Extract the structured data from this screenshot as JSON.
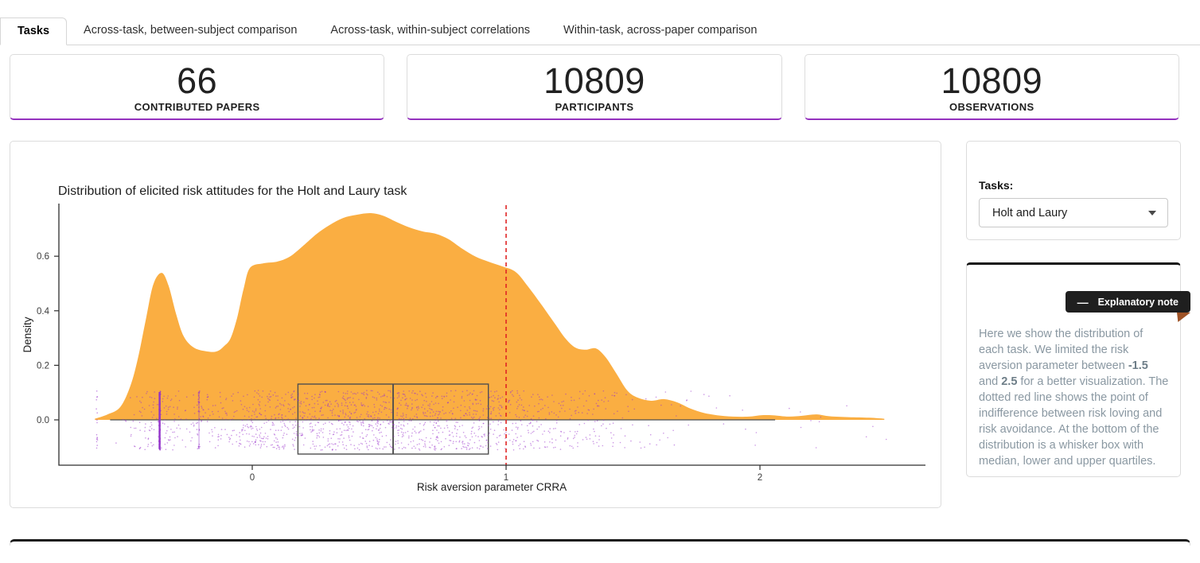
{
  "tabs": {
    "items": [
      {
        "label": "Tasks"
      },
      {
        "label": "Across-task, between-subject comparison"
      },
      {
        "label": "Across-task, within-subject correlations"
      },
      {
        "label": "Within-task, across-paper comparison"
      }
    ]
  },
  "stats": [
    {
      "value": "66",
      "label": "CONTRIBUTED PAPERS"
    },
    {
      "value": "10809",
      "label": "PARTICIPANTS"
    },
    {
      "value": "10809",
      "label": "OBSERVATIONS"
    }
  ],
  "sidebar": {
    "tasks_label": "Tasks:",
    "selected_task": "Holt and Laury",
    "note_badge": "Explanatory note",
    "note": {
      "p1": "Here we show the distribution of each task. We limited the risk aversion parameter between ",
      "b1": "-1.5",
      "p2": " and ",
      "b2": "2.5",
      "p3": " for a better visualization. The dotted red line shows the point of indifference between risk loving and risk avoidance. At the bottom of the distribution is a whisker box with median, lower and upper quartiles."
    }
  },
  "chart_data": {
    "type": "area",
    "title": "Distribution of elicited risk attitudes for the Holt and Laury task",
    "xlabel": "Risk aversion parameter CRRA",
    "ylabel": "Density",
    "x_ticks": [
      0,
      1,
      2
    ],
    "y_ticks": [
      0.0,
      0.2,
      0.4,
      0.6
    ],
    "xlim": [
      -0.76,
      2.65
    ],
    "ylim": [
      0,
      0.8
    ],
    "reference_line_x": 1,
    "density_curve": [
      [
        -0.62,
        0.004
      ],
      [
        -0.57,
        0.02
      ],
      [
        -0.52,
        0.047
      ],
      [
        -0.48,
        0.125
      ],
      [
        -0.45,
        0.227
      ],
      [
        -0.42,
        0.364
      ],
      [
        -0.39,
        0.496
      ],
      [
        -0.357,
        0.539
      ],
      [
        -0.33,
        0.493
      ],
      [
        -0.3,
        0.388
      ],
      [
        -0.27,
        0.306
      ],
      [
        -0.23,
        0.265
      ],
      [
        -0.18,
        0.251
      ],
      [
        -0.14,
        0.251
      ],
      [
        -0.11,
        0.271
      ],
      [
        -0.085,
        0.3
      ],
      [
        -0.06,
        0.373
      ],
      [
        -0.034,
        0.481
      ],
      [
        -0.009,
        0.557
      ],
      [
        0.044,
        0.574
      ],
      [
        0.097,
        0.58
      ],
      [
        0.147,
        0.598
      ],
      [
        0.2,
        0.638
      ],
      [
        0.254,
        0.682
      ],
      [
        0.304,
        0.714
      ],
      [
        0.357,
        0.74
      ],
      [
        0.411,
        0.752
      ],
      [
        0.467,
        0.758
      ],
      [
        0.514,
        0.749
      ],
      [
        0.567,
        0.726
      ],
      [
        0.617,
        0.706
      ],
      [
        0.671,
        0.691
      ],
      [
        0.724,
        0.682
      ],
      [
        0.774,
        0.662
      ],
      [
        0.828,
        0.627
      ],
      [
        0.881,
        0.598
      ],
      [
        0.931,
        0.58
      ],
      [
        0.984,
        0.563
      ],
      [
        1.038,
        0.542
      ],
      [
        1.088,
        0.487
      ],
      [
        1.141,
        0.42
      ],
      [
        1.194,
        0.35
      ],
      [
        1.235,
        0.297
      ],
      [
        1.273,
        0.265
      ],
      [
        1.313,
        0.257
      ],
      [
        1.354,
        0.262
      ],
      [
        1.392,
        0.23
      ],
      [
        1.433,
        0.172
      ],
      [
        1.477,
        0.108
      ],
      [
        1.517,
        0.082
      ],
      [
        1.571,
        0.07
      ],
      [
        1.621,
        0.076
      ],
      [
        1.674,
        0.064
      ],
      [
        1.727,
        0.041
      ],
      [
        1.777,
        0.026
      ],
      [
        1.831,
        0.017
      ],
      [
        1.893,
        0.012
      ],
      [
        1.956,
        0.012
      ],
      [
        2.003,
        0.017
      ],
      [
        2.05,
        0.017
      ],
      [
        2.113,
        0.012
      ],
      [
        2.166,
        0.015
      ],
      [
        2.223,
        0.02
      ],
      [
        2.276,
        0.013
      ],
      [
        2.35,
        0.01
      ],
      [
        2.43,
        0.008
      ],
      [
        2.49,
        0.004
      ]
    ],
    "boxplot": {
      "whisker_min": -0.56,
      "q1": 0.18,
      "median": 0.555,
      "q3": 0.93,
      "whisker_max": 2.06
    },
    "point_clusters": [
      {
        "x": -0.365,
        "n": 95,
        "line_width": 2.4
      },
      {
        "x": -0.21,
        "n": 24,
        "line_width": 1.1
      },
      {
        "x": -0.612,
        "n": 16,
        "line_width": 0
      }
    ],
    "n_points": 1650,
    "colors": {
      "density": "#FAAE42",
      "points": "#9932CC",
      "reference": "#E02525",
      "box": "#4f4f4f",
      "axis": "#2e2e2e"
    }
  }
}
